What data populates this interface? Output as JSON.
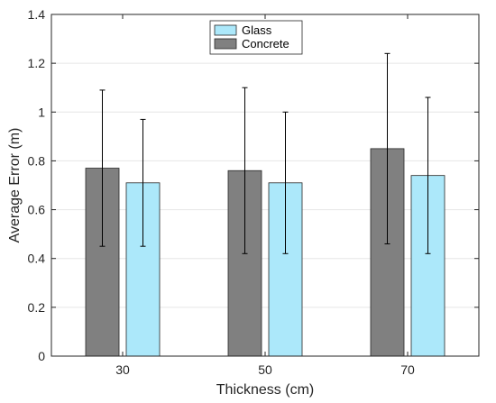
{
  "chart_data": {
    "type": "bar",
    "title": "",
    "xlabel": "Thickness (cm)",
    "ylabel": "Average Error (m)",
    "categories": [
      "30",
      "50",
      "70"
    ],
    "ylim": [
      0,
      1.4
    ],
    "yticks": [
      "0",
      "0.2",
      "0.4",
      "0.6",
      "0.8",
      "1",
      "1.2",
      "1.4"
    ],
    "grid": true,
    "legend_placement": "top-center",
    "legend_order": [
      "Glass",
      "Concrete"
    ],
    "series": [
      {
        "name": "Concrete",
        "color": "#808080",
        "values": [
          0.77,
          0.76,
          0.85
        ],
        "err_low": [
          0.45,
          0.42,
          0.46
        ],
        "err_high": [
          1.09,
          1.1,
          1.24
        ]
      },
      {
        "name": "Glass",
        "color": "#ace8fa",
        "values": [
          0.71,
          0.71,
          0.74
        ],
        "err_low": [
          0.45,
          0.42,
          0.42
        ],
        "err_high": [
          0.97,
          1.0,
          1.06
        ]
      }
    ]
  }
}
